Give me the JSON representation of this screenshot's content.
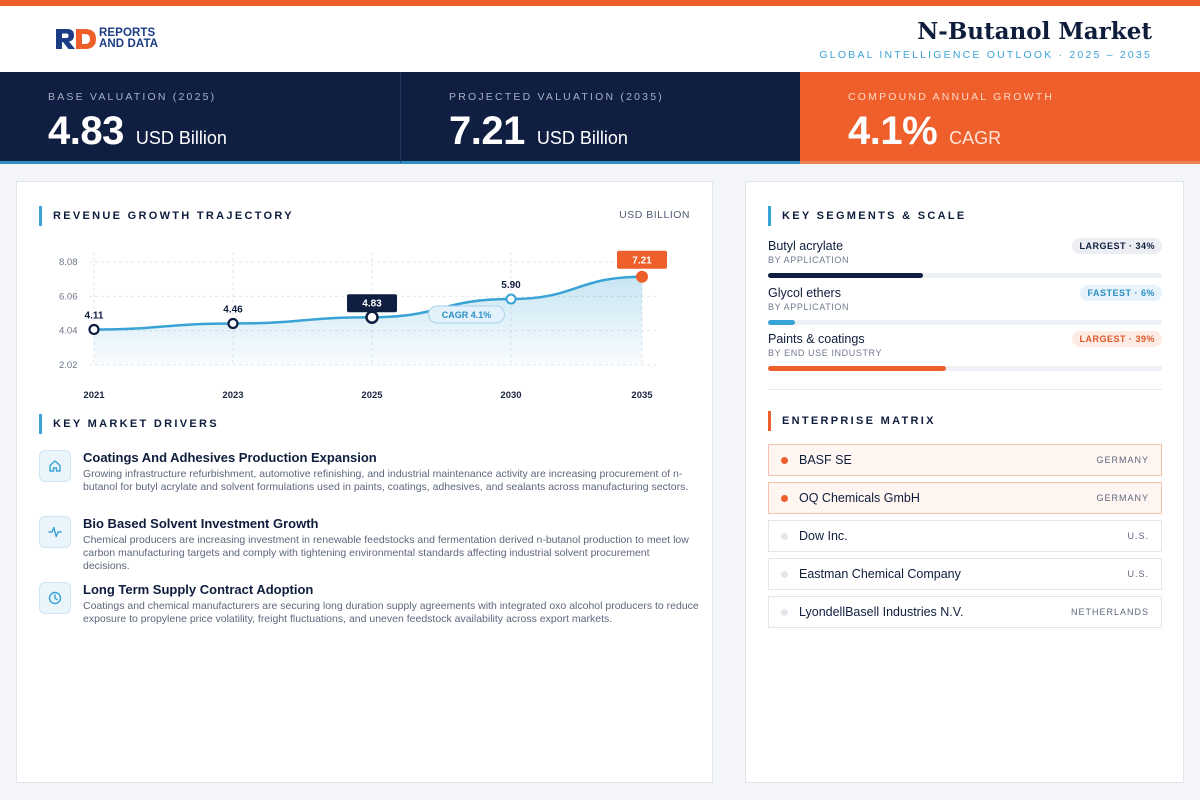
{
  "header": {
    "logo_line1": "REPORTS",
    "logo_line2": "AND DATA",
    "title": "N-Butanol Market",
    "subtitle": "GLOBAL INTELLIGENCE OUTLOOK  ·  2025 – 2035"
  },
  "kpis": [
    {
      "label": "BASE VALUATION (2025)",
      "value": "4.83",
      "unit": "USD Billion"
    },
    {
      "label": "PROJECTED VALUATION (2035)",
      "value": "7.21",
      "unit": "USD Billion"
    },
    {
      "label": "COMPOUND ANNUAL GROWTH",
      "value": "4.1%",
      "unit": "CAGR"
    }
  ],
  "colors": {
    "navy": "#0f1e41",
    "orange": "#ee5f2c",
    "blue": "#3aa3d6"
  },
  "chart_section": {
    "title": "REVENUE GROWTH TRAJECTORY",
    "unit": "USD BILLION"
  },
  "chart_data": {
    "type": "line",
    "x": [
      "2021",
      "2023",
      "2025",
      "2030",
      "2035"
    ],
    "values": [
      4.11,
      4.46,
      4.83,
      5.9,
      7.21
    ],
    "value_labels": [
      "4.11",
      "4.46",
      "4.83",
      "5.90",
      "7.21"
    ],
    "yticks": [
      "8.08",
      "6.06",
      "4.04",
      "2.02"
    ],
    "ylim": [
      2.02,
      8.08
    ],
    "annotation": "CAGR 4.1%",
    "highlight": {
      "base_index": 2,
      "end_index": 4
    },
    "grid": true,
    "area_fill": true
  },
  "drivers_section": {
    "title": "KEY MARKET DRIVERS"
  },
  "drivers": [
    {
      "icon": "home-icon",
      "title": "Coatings And Adhesives Production Expansion",
      "desc": "Growing infrastructure refurbishment, automotive refinishing, and industrial maintenance activity are increasing procurement of n-butanol for butyl acrylate and solvent formulations used in paints, coatings, adhesives, and sealants across manufacturing sectors."
    },
    {
      "icon": "activity-icon",
      "title": "Bio Based Solvent Investment Growth",
      "desc": "Chemical producers are increasing investment in renewable feedstocks and fermentation derived n-butanol production to meet low carbon manufacturing targets and comply with tightening environmental standards affecting industrial solvent procurement decisions."
    },
    {
      "icon": "clock-icon",
      "title": "Long Term Supply Contract Adoption",
      "desc": "Coatings and chemical manufacturers are securing long duration supply agreements with integrated oxo alcohol producers to reduce exposure to propylene price volatility, freight fluctuations, and uneven feedstock availability across export markets."
    }
  ],
  "segments_section": {
    "title": "KEY SEGMENTS & SCALE"
  },
  "segments": [
    {
      "name": "Butyl acrylate",
      "sub": "BY APPLICATION",
      "badge": "LARGEST · 34%",
      "share": 34,
      "color": "#0f1e41",
      "badge_bg": "#eceef3",
      "badge_fg": "#0f1d3d"
    },
    {
      "name": "Glycol ethers",
      "sub": "BY APPLICATION",
      "badge": "FASTEST · 6%",
      "share": 6,
      "color": "#3aa3d6",
      "badge_bg": "#e6f3fa",
      "badge_fg": "#2b8fc2"
    },
    {
      "name": "Paints & coatings",
      "sub": "BY END USE INDUSTRY",
      "badge": "LARGEST · 39%",
      "share": 39,
      "color": "#ee5f2c",
      "badge_bg": "#fdece4",
      "badge_fg": "#e0572a"
    }
  ],
  "enterprise_section": {
    "title": "ENTERPRISE MATRIX"
  },
  "companies": [
    {
      "name": "BASF SE",
      "country": "GERMANY",
      "highlight": true
    },
    {
      "name": "OQ Chemicals GmbH",
      "country": "GERMANY",
      "highlight": true
    },
    {
      "name": "Dow Inc.",
      "country": "U.S.",
      "highlight": false
    },
    {
      "name": "Eastman Chemical Company",
      "country": "U.S.",
      "highlight": false
    },
    {
      "name": "LyondellBasell Industries N.V.",
      "country": "NETHERLANDS",
      "highlight": false
    }
  ]
}
